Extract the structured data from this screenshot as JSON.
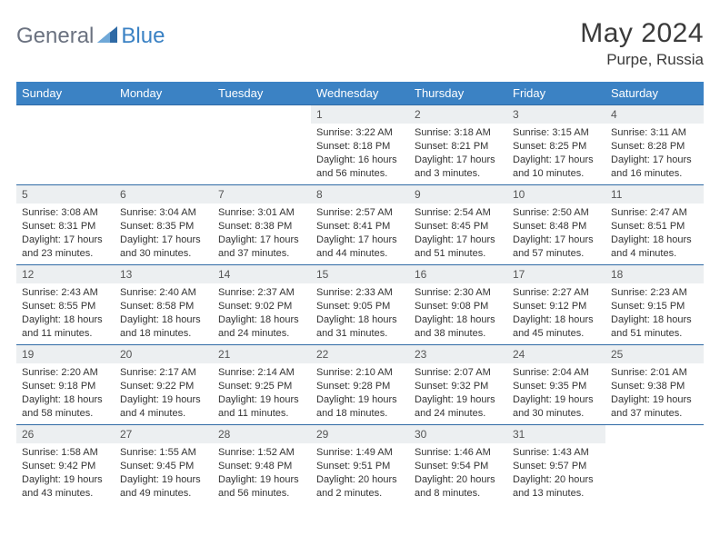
{
  "brand": {
    "part1": "General",
    "part2": "Blue"
  },
  "title": "May 2024",
  "location": "Purpe, Russia",
  "colors": {
    "header_bg": "#3b82c4",
    "header_text": "#ffffff",
    "row_border": "#2f6aa5",
    "daynum_bg": "#eceff1",
    "body_text": "#333333",
    "brand_gray": "#6b7280",
    "brand_blue": "#3b82c4",
    "page_bg": "#ffffff"
  },
  "typography": {
    "title_fontsize": 30,
    "location_fontsize": 17,
    "dayheader_fontsize": 13,
    "daynum_fontsize": 12,
    "cell_fontsize": 11
  },
  "calendar": {
    "type": "table",
    "days_of_week": [
      "Sunday",
      "Monday",
      "Tuesday",
      "Wednesday",
      "Thursday",
      "Friday",
      "Saturday"
    ],
    "first_weekday_index": 3,
    "days": [
      {
        "n": "1",
        "sunrise": "3:22 AM",
        "sunset": "8:18 PM",
        "daylight": "16 hours and 56 minutes."
      },
      {
        "n": "2",
        "sunrise": "3:18 AM",
        "sunset": "8:21 PM",
        "daylight": "17 hours and 3 minutes."
      },
      {
        "n": "3",
        "sunrise": "3:15 AM",
        "sunset": "8:25 PM",
        "daylight": "17 hours and 10 minutes."
      },
      {
        "n": "4",
        "sunrise": "3:11 AM",
        "sunset": "8:28 PM",
        "daylight": "17 hours and 16 minutes."
      },
      {
        "n": "5",
        "sunrise": "3:08 AM",
        "sunset": "8:31 PM",
        "daylight": "17 hours and 23 minutes."
      },
      {
        "n": "6",
        "sunrise": "3:04 AM",
        "sunset": "8:35 PM",
        "daylight": "17 hours and 30 minutes."
      },
      {
        "n": "7",
        "sunrise": "3:01 AM",
        "sunset": "8:38 PM",
        "daylight": "17 hours and 37 minutes."
      },
      {
        "n": "8",
        "sunrise": "2:57 AM",
        "sunset": "8:41 PM",
        "daylight": "17 hours and 44 minutes."
      },
      {
        "n": "9",
        "sunrise": "2:54 AM",
        "sunset": "8:45 PM",
        "daylight": "17 hours and 51 minutes."
      },
      {
        "n": "10",
        "sunrise": "2:50 AM",
        "sunset": "8:48 PM",
        "daylight": "17 hours and 57 minutes."
      },
      {
        "n": "11",
        "sunrise": "2:47 AM",
        "sunset": "8:51 PM",
        "daylight": "18 hours and 4 minutes."
      },
      {
        "n": "12",
        "sunrise": "2:43 AM",
        "sunset": "8:55 PM",
        "daylight": "18 hours and 11 minutes."
      },
      {
        "n": "13",
        "sunrise": "2:40 AM",
        "sunset": "8:58 PM",
        "daylight": "18 hours and 18 minutes."
      },
      {
        "n": "14",
        "sunrise": "2:37 AM",
        "sunset": "9:02 PM",
        "daylight": "18 hours and 24 minutes."
      },
      {
        "n": "15",
        "sunrise": "2:33 AM",
        "sunset": "9:05 PM",
        "daylight": "18 hours and 31 minutes."
      },
      {
        "n": "16",
        "sunrise": "2:30 AM",
        "sunset": "9:08 PM",
        "daylight": "18 hours and 38 minutes."
      },
      {
        "n": "17",
        "sunrise": "2:27 AM",
        "sunset": "9:12 PM",
        "daylight": "18 hours and 45 minutes."
      },
      {
        "n": "18",
        "sunrise": "2:23 AM",
        "sunset": "9:15 PM",
        "daylight": "18 hours and 51 minutes."
      },
      {
        "n": "19",
        "sunrise": "2:20 AM",
        "sunset": "9:18 PM",
        "daylight": "18 hours and 58 minutes."
      },
      {
        "n": "20",
        "sunrise": "2:17 AM",
        "sunset": "9:22 PM",
        "daylight": "19 hours and 4 minutes."
      },
      {
        "n": "21",
        "sunrise": "2:14 AM",
        "sunset": "9:25 PM",
        "daylight": "19 hours and 11 minutes."
      },
      {
        "n": "22",
        "sunrise": "2:10 AM",
        "sunset": "9:28 PM",
        "daylight": "19 hours and 18 minutes."
      },
      {
        "n": "23",
        "sunrise": "2:07 AM",
        "sunset": "9:32 PM",
        "daylight": "19 hours and 24 minutes."
      },
      {
        "n": "24",
        "sunrise": "2:04 AM",
        "sunset": "9:35 PM",
        "daylight": "19 hours and 30 minutes."
      },
      {
        "n": "25",
        "sunrise": "2:01 AM",
        "sunset": "9:38 PM",
        "daylight": "19 hours and 37 minutes."
      },
      {
        "n": "26",
        "sunrise": "1:58 AM",
        "sunset": "9:42 PM",
        "daylight": "19 hours and 43 minutes."
      },
      {
        "n": "27",
        "sunrise": "1:55 AM",
        "sunset": "9:45 PM",
        "daylight": "19 hours and 49 minutes."
      },
      {
        "n": "28",
        "sunrise": "1:52 AM",
        "sunset": "9:48 PM",
        "daylight": "19 hours and 56 minutes."
      },
      {
        "n": "29",
        "sunrise": "1:49 AM",
        "sunset": "9:51 PM",
        "daylight": "20 hours and 2 minutes."
      },
      {
        "n": "30",
        "sunrise": "1:46 AM",
        "sunset": "9:54 PM",
        "daylight": "20 hours and 8 minutes."
      },
      {
        "n": "31",
        "sunrise": "1:43 AM",
        "sunset": "9:57 PM",
        "daylight": "20 hours and 13 minutes."
      }
    ],
    "labels": {
      "sunrise": "Sunrise:",
      "sunset": "Sunset:",
      "daylight": "Daylight:"
    }
  }
}
